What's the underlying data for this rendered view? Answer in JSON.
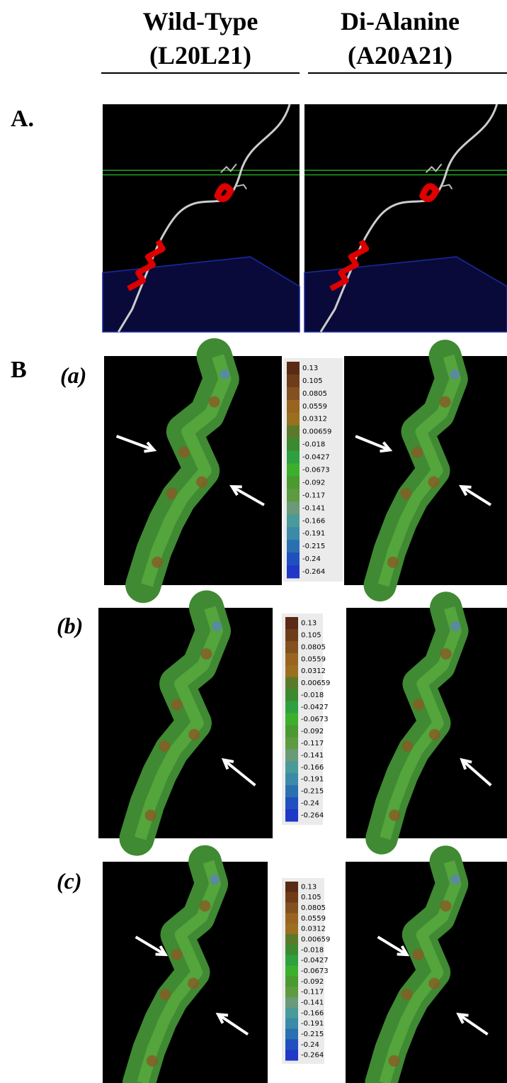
{
  "header": {
    "columns": [
      {
        "title": "Wild-Type",
        "subtitle": "(L20L21)"
      },
      {
        "title": "Di-Alanine",
        "subtitle": "(A20A21)"
      }
    ]
  },
  "section_a": {
    "label": "A."
  },
  "section_b": {
    "label": "B",
    "panels": [
      {
        "label": "(a)",
        "scale": [
          "0.13",
          "0.105",
          "0.0805",
          "0.0559",
          "0.0312",
          "0.00659",
          "-0.018",
          "-0.0427",
          "-0.0673",
          "-0.092",
          "-0.117",
          "-0.141",
          "-0.166",
          "-0.191",
          "-0.215",
          "-0.24",
          "-0.264"
        ]
      },
      {
        "label": "(b)",
        "scale": [
          "0.13",
          "0.105",
          "0.0805",
          "0.0559",
          "0.0312",
          "0.00659",
          "-0.018",
          "-0.0427",
          "-0.0673",
          "-0.092",
          "-0.117",
          "-0.141",
          "-0.166",
          "-0.191",
          "-0.215",
          "-0.24",
          "-0.264"
        ]
      },
      {
        "label": "(c)",
        "scale": [
          "0.13",
          "0.105",
          "0.0805",
          "0.0559",
          "0.0312",
          "0.00659",
          "-0.018",
          "-0.0427",
          "-0.0673",
          "-0.092",
          "-0.117",
          "-0.141",
          "-0.166",
          "-0.191",
          "-0.215",
          "-0.24",
          "-0.264"
        ]
      }
    ]
  }
}
